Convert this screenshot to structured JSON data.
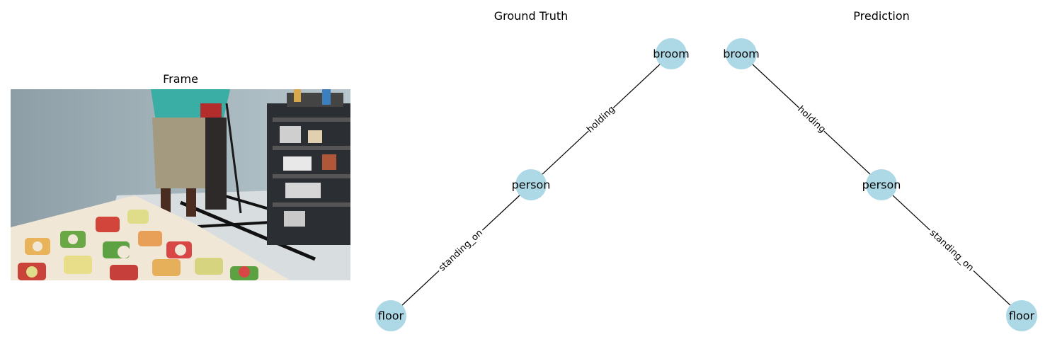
{
  "panels": {
    "frame": {
      "title": "Frame"
    },
    "ground_truth": {
      "title": "Ground Truth",
      "nodes": {
        "broom": "broom",
        "person": "person",
        "floor": "floor"
      },
      "edges": {
        "holding": "holding",
        "standing_on": "standing_on"
      }
    },
    "prediction": {
      "title": "Prediction",
      "nodes": {
        "broom": "broom",
        "person": "person",
        "floor": "floor"
      },
      "edges": {
        "holding": "holding",
        "standing_on": "standing_on"
      }
    }
  },
  "colors": {
    "node_fill": "#add8e6",
    "edge_stroke": "#000000"
  }
}
